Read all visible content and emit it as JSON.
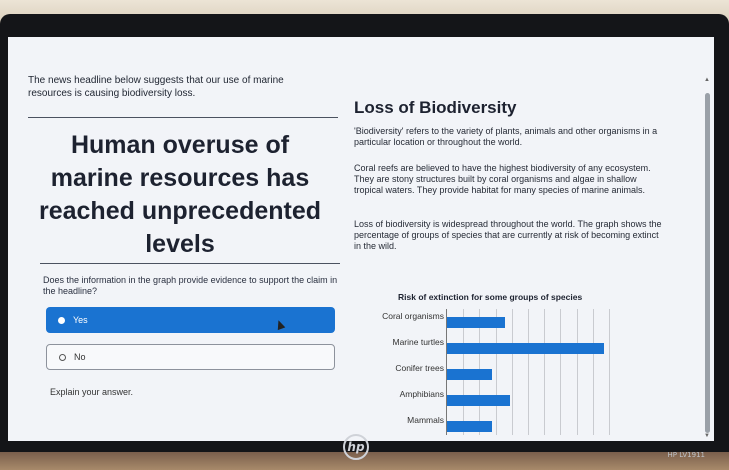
{
  "prompt": "The news headline below suggests that our use of marine resources is causing biodiversity loss.",
  "headline": [
    "Human overuse of",
    "marine resources has",
    "reached unprecedented",
    "levels"
  ],
  "question": "Does the information in the graph provide evidence to support the claim in the headline?",
  "options": [
    {
      "label": "Yes",
      "selected": true
    },
    {
      "label": "No",
      "selected": false
    }
  ],
  "explain_label": "Explain your answer.",
  "info": {
    "title": "Loss of Biodiversity",
    "paragraphs": [
      "'Biodiversity' refers to the variety of plants, animals and other organisms in a particular location or throughout the world.",
      "Coral reefs are believed to have the highest biodiversity of any ecosystem. They are stony structures built by coral organisms and algae in shallow tropical waters. They provide habitat for many species of marine animals.",
      "Loss of biodiversity is widespread throughout the world. The graph shows the percentage of groups of species that are currently at risk of becoming extinct in the wild."
    ]
  },
  "chart_data": {
    "type": "bar",
    "orientation": "horizontal",
    "title": "Risk of extinction for some groups of species",
    "categories": [
      "Coral organisms",
      "Marine turtles",
      "Conifer trees",
      "Amphibians",
      "Mammals"
    ],
    "values": [
      35,
      95,
      27,
      38,
      27
    ],
    "xlim": [
      0,
      100
    ],
    "xlabel": "",
    "ylabel": "",
    "grid": true
  },
  "device": {
    "brand": "hp",
    "model": "HP LV1911"
  },
  "colors": {
    "accent": "#1a73d1",
    "screen_bg": "#f2f4f8",
    "text": "#1d2230"
  }
}
